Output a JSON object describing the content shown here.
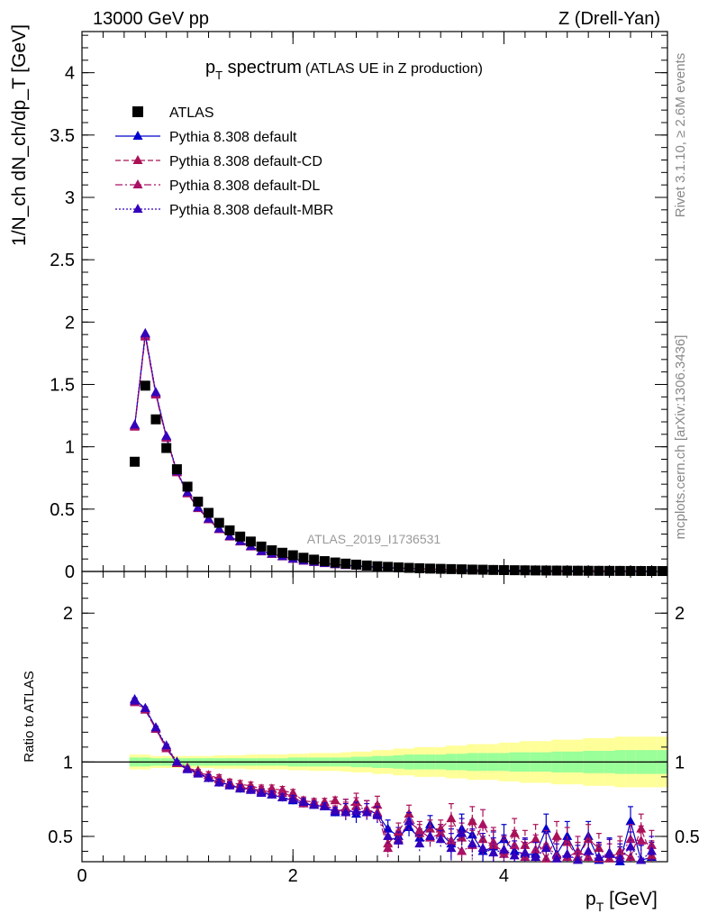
{
  "chart_data": {
    "type": "scatter",
    "header_left": "13000 GeV pp",
    "header_right": "Z (Drell-Yan)",
    "title_main": "p",
    "title_sub": "T",
    "title_word": " spectrum",
    "title_paren": "(ATLAS UE in Z production)",
    "ylabel": "1/N_ch dN_ch/dp_T [GeV]",
    "ratio_ylabel": "Ratio to ATLAS",
    "xlabel_main": "p",
    "xlabel_sub": "T",
    "xlabel_unit": " [GeV]",
    "analysis_id": "ATLAS_2019_I1736531",
    "side_top": "Rivet 3.1.10, ≥ 2.6M events",
    "side_bottom": "mcplots.cern.ch [arXiv:1306.3436]",
    "xlim": [
      0,
      5.55
    ],
    "ylim": [
      0,
      4.33
    ],
    "ratio_ylim": [
      0.33,
      2.28
    ],
    "main_yticks": [
      {
        "v": 0,
        "label": "0"
      },
      {
        "v": 0.5,
        "label": "0.5"
      },
      {
        "v": 1,
        "label": "1"
      },
      {
        "v": 1.5,
        "label": "1.5"
      },
      {
        "v": 2,
        "label": "2"
      },
      {
        "v": 2.5,
        "label": "2.5"
      },
      {
        "v": 3,
        "label": "3"
      },
      {
        "v": 3.5,
        "label": "3.5"
      },
      {
        "v": 4,
        "label": "4"
      }
    ],
    "ratio_yticks": [
      {
        "v": 0.5,
        "label": "0.5"
      },
      {
        "v": 1,
        "label": "1"
      },
      {
        "v": 2,
        "label": "2"
      }
    ],
    "xticks": [
      {
        "v": 0,
        "label": "0"
      },
      {
        "v": 2,
        "label": "2"
      },
      {
        "v": 4,
        "label": "4"
      }
    ],
    "legend": [
      {
        "label": "ATLAS",
        "color": "#000000",
        "marker": "square",
        "dash": ""
      },
      {
        "label": "Pythia 8.308 default",
        "color": "#0000cc",
        "marker": "triangle",
        "dash": ""
      },
      {
        "label": "Pythia 8.308 default-CD",
        "color": "#aa1155",
        "marker": "triangle",
        "dash": "6,3"
      },
      {
        "label": "Pythia 8.308 default-DL",
        "color": "#aa1166",
        "marker": "triangle",
        "dash": "8,3,2,3"
      },
      {
        "label": "Pythia 8.308 default-MBR",
        "color": "#3300bb",
        "marker": "triangle",
        "dash": "2,2"
      }
    ],
    "data_x": [
      0.5,
      0.6,
      0.7,
      0.8,
      0.9,
      1.0,
      1.1,
      1.2,
      1.3,
      1.4,
      1.5,
      1.6,
      1.7,
      1.8,
      1.9,
      2.0,
      2.1,
      2.2,
      2.3,
      2.4,
      2.5,
      2.6,
      2.7,
      2.8,
      2.9,
      3.0,
      3.1,
      3.2,
      3.3,
      3.4,
      3.5,
      3.6,
      3.7,
      3.8,
      3.9,
      4.0,
      4.1,
      4.2,
      4.3,
      4.4,
      4.5,
      4.6,
      4.7,
      4.8,
      4.9,
      5.0,
      5.1,
      5.2,
      5.3,
      5.4,
      5.5
    ],
    "data_y": [
      0.88,
      1.49,
      1.22,
      0.99,
      0.82,
      0.68,
      0.56,
      0.47,
      0.39,
      0.33,
      0.28,
      0.24,
      0.2,
      0.17,
      0.15,
      0.13,
      0.11,
      0.095,
      0.083,
      0.072,
      0.063,
      0.055,
      0.048,
      0.042,
      0.037,
      0.033,
      0.029,
      0.026,
      0.023,
      0.021,
      0.019,
      0.017,
      0.015,
      0.014,
      0.012,
      0.011,
      0.01,
      0.009,
      0.008,
      0.0075,
      0.007,
      0.0065,
      0.006,
      0.0055,
      0.005,
      0.0047,
      0.0044,
      0.0041,
      0.0038,
      0.0036,
      0.0034
    ],
    "mc_x": [
      0.5,
      0.6,
      0.7,
      0.8,
      0.9,
      1.0,
      1.1,
      1.2,
      1.3,
      1.4,
      1.5,
      1.6,
      1.7,
      1.8,
      1.9,
      2.0,
      2.1,
      2.2,
      2.3,
      2.4,
      2.5,
      2.6,
      2.7,
      2.8,
      2.9,
      3.0,
      3.1,
      3.2,
      3.3,
      3.4,
      3.5,
      3.6,
      3.7,
      3.8,
      3.9,
      4.0,
      4.1,
      4.2,
      4.3,
      4.4,
      4.5,
      4.6,
      4.7,
      4.8,
      4.9,
      5.0,
      5.1,
      5.2,
      5.3,
      5.4
    ],
    "mc_y": [
      1.17,
      1.9,
      1.43,
      1.08,
      0.8,
      0.63,
      0.51,
      0.42,
      0.34,
      0.28,
      0.24,
      0.2,
      0.16,
      0.14,
      0.12,
      0.1,
      0.085,
      0.075,
      0.065,
      0.057,
      0.05,
      0.044,
      0.039,
      0.034,
      0.03,
      0.027,
      0.024,
      0.021,
      0.019,
      0.017,
      0.015,
      0.014,
      0.012,
      0.011,
      0.01,
      0.009,
      0.008,
      0.0075,
      0.007,
      0.0065,
      0.006,
      0.0055,
      0.005,
      0.0047,
      0.0044,
      0.0041,
      0.0038,
      0.0036,
      0.0034,
      0.0032
    ],
    "ratio_x": [
      0.5,
      0.6,
      0.7,
      0.8,
      0.9,
      1.0,
      1.1,
      1.2,
      1.3,
      1.4,
      1.5,
      1.6,
      1.7,
      1.8,
      1.9,
      2.0,
      2.1,
      2.2,
      2.3,
      2.4,
      2.5,
      2.6,
      2.7,
      2.8,
      2.9,
      3.0,
      3.1,
      3.2,
      3.3,
      3.4,
      3.5,
      3.6,
      3.7,
      3.8,
      3.9,
      4.0,
      4.1,
      4.2,
      4.3,
      4.4,
      4.5,
      4.6,
      4.7,
      4.8,
      4.9,
      5.0,
      5.1,
      5.2,
      5.3,
      5.4
    ],
    "ratio_series": [
      [
        1.42,
        1.36,
        1.23,
        1.1,
        0.99,
        0.95,
        0.93,
        0.89,
        0.86,
        0.85,
        0.82,
        0.82,
        0.8,
        0.78,
        0.76,
        0.74,
        0.72,
        0.71,
        0.7,
        0.66,
        0.69,
        0.65,
        0.68,
        0.65,
        0.55,
        0.5,
        0.56,
        0.49,
        0.58,
        0.52,
        0.45,
        0.55,
        0.51,
        0.4,
        0.43,
        0.48,
        0.4,
        0.38,
        0.38,
        0.55,
        0.38,
        0.5,
        0.36,
        0.5,
        0.34,
        0.39,
        0.33,
        0.6,
        0.34,
        0.36
      ],
      [
        1.41,
        1.35,
        1.22,
        1.1,
        1.0,
        0.96,
        0.94,
        0.91,
        0.89,
        0.86,
        0.85,
        0.84,
        0.82,
        0.82,
        0.81,
        0.79,
        0.74,
        0.73,
        0.73,
        0.74,
        0.69,
        0.73,
        0.68,
        0.71,
        0.45,
        0.53,
        0.65,
        0.52,
        0.55,
        0.55,
        0.62,
        0.49,
        0.6,
        0.48,
        0.44,
        0.4,
        0.52,
        0.44,
        0.48,
        0.35,
        0.5,
        0.46,
        0.36,
        0.48,
        0.42,
        0.35,
        0.4,
        0.36,
        0.55,
        0.37
      ],
      [
        1.4,
        1.35,
        1.22,
        1.09,
        0.99,
        0.96,
        0.93,
        0.91,
        0.88,
        0.85,
        0.83,
        0.82,
        0.81,
        0.8,
        0.79,
        0.77,
        0.72,
        0.72,
        0.71,
        0.68,
        0.67,
        0.7,
        0.68,
        0.66,
        0.42,
        0.48,
        0.6,
        0.54,
        0.49,
        0.52,
        0.47,
        0.4,
        0.44,
        0.58,
        0.46,
        0.38,
        0.44,
        0.36,
        0.41,
        0.44,
        0.37,
        0.36,
        0.4,
        0.36,
        0.35,
        0.38,
        0.37,
        0.48,
        0.47,
        0.44
      ],
      [
        1.41,
        1.36,
        1.23,
        1.11,
        1.0,
        0.95,
        0.92,
        0.89,
        0.86,
        0.84,
        0.82,
        0.81,
        0.79,
        0.78,
        0.76,
        0.75,
        0.73,
        0.71,
        0.7,
        0.67,
        0.66,
        0.67,
        0.66,
        0.64,
        0.5,
        0.47,
        0.6,
        0.45,
        0.5,
        0.48,
        0.42,
        0.52,
        0.45,
        0.42,
        0.39,
        0.41,
        0.37,
        0.39,
        0.36,
        0.42,
        0.35,
        0.38,
        0.34,
        0.4,
        0.36,
        0.38,
        0.35,
        0.43,
        0.34,
        0.4
      ]
    ],
    "band_inner": [
      0.03,
      0.03,
      0.025,
      0.025,
      0.025,
      0.025,
      0.025,
      0.025,
      0.025,
      0.025,
      0.025,
      0.025,
      0.025,
      0.025,
      0.025,
      0.03,
      0.03,
      0.03,
      0.03,
      0.03,
      0.03,
      0.035,
      0.035,
      0.04,
      0.04,
      0.045,
      0.05,
      0.05,
      0.05,
      0.05,
      0.055,
      0.055,
      0.06,
      0.06,
      0.06,
      0.06,
      0.065,
      0.065,
      0.065,
      0.065,
      0.07,
      0.07,
      0.07,
      0.075,
      0.075,
      0.075,
      0.08,
      0.08,
      0.08,
      0.08,
      0.08
    ],
    "band_outer": [
      0.05,
      0.05,
      0.04,
      0.04,
      0.04,
      0.04,
      0.04,
      0.04,
      0.045,
      0.045,
      0.045,
      0.05,
      0.05,
      0.05,
      0.05,
      0.055,
      0.055,
      0.06,
      0.06,
      0.06,
      0.065,
      0.07,
      0.07,
      0.08,
      0.08,
      0.09,
      0.09,
      0.1,
      0.1,
      0.1,
      0.11,
      0.11,
      0.12,
      0.12,
      0.12,
      0.13,
      0.13,
      0.14,
      0.14,
      0.14,
      0.15,
      0.15,
      0.15,
      0.16,
      0.16,
      0.16,
      0.17,
      0.17,
      0.17,
      0.17,
      0.17
    ]
  }
}
